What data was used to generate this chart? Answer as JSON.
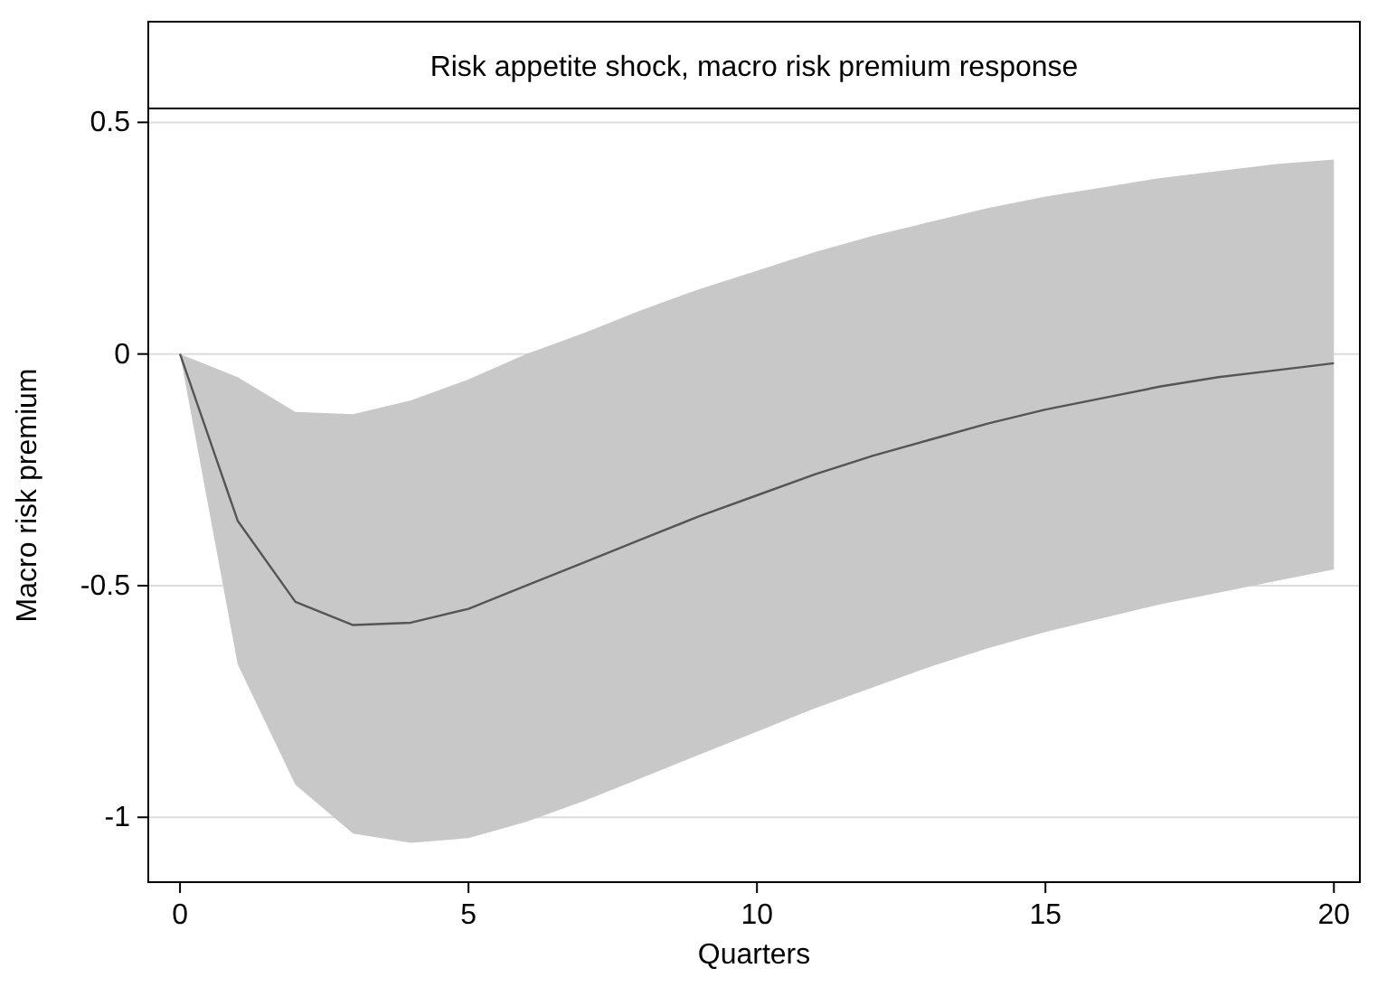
{
  "chart_data": {
    "type": "line",
    "title": "Risk appetite shock, macro risk premium response",
    "xlabel": "Quarters",
    "ylabel": "Macro risk premium",
    "x": [
      0,
      1,
      2,
      3,
      4,
      5,
      6,
      7,
      8,
      9,
      10,
      11,
      12,
      13,
      14,
      15,
      16,
      17,
      18,
      19,
      20
    ],
    "series": [
      {
        "color": "#555555",
        "values": [
          0,
          -0.36,
          -0.535,
          -0.585,
          -0.58,
          -0.55,
          -0.5,
          -0.45,
          -0.4,
          -0.35,
          -0.305,
          -0.26,
          -0.22,
          -0.185,
          -0.15,
          -0.12,
          -0.095,
          -0.07,
          -0.05,
          -0.035,
          -0.02
        ],
        "lower": [
          0,
          -0.67,
          -0.93,
          -1.035,
          -1.055,
          -1.045,
          -1.01,
          -0.965,
          -0.915,
          -0.865,
          -0.815,
          -0.765,
          -0.72,
          -0.675,
          -0.635,
          -0.6,
          -0.57,
          -0.54,
          -0.515,
          -0.49,
          -0.465
        ],
        "upper": [
          0,
          -0.05,
          -0.125,
          -0.13,
          -0.1,
          -0.055,
          0,
          0.045,
          0.095,
          0.14,
          0.18,
          0.22,
          0.255,
          0.285,
          0.315,
          0.34,
          0.36,
          0.38,
          0.395,
          0.41,
          0.42
        ]
      }
    ],
    "xlim": [
      -0.55,
      20.45
    ],
    "ylim": [
      -1.14,
      0.53
    ],
    "xticks": [
      0,
      5,
      10,
      15,
      20
    ],
    "yticks": [
      -1,
      -0.5,
      0,
      0.5
    ],
    "grid": "y",
    "marker": "none",
    "line_style": "solid"
  }
}
